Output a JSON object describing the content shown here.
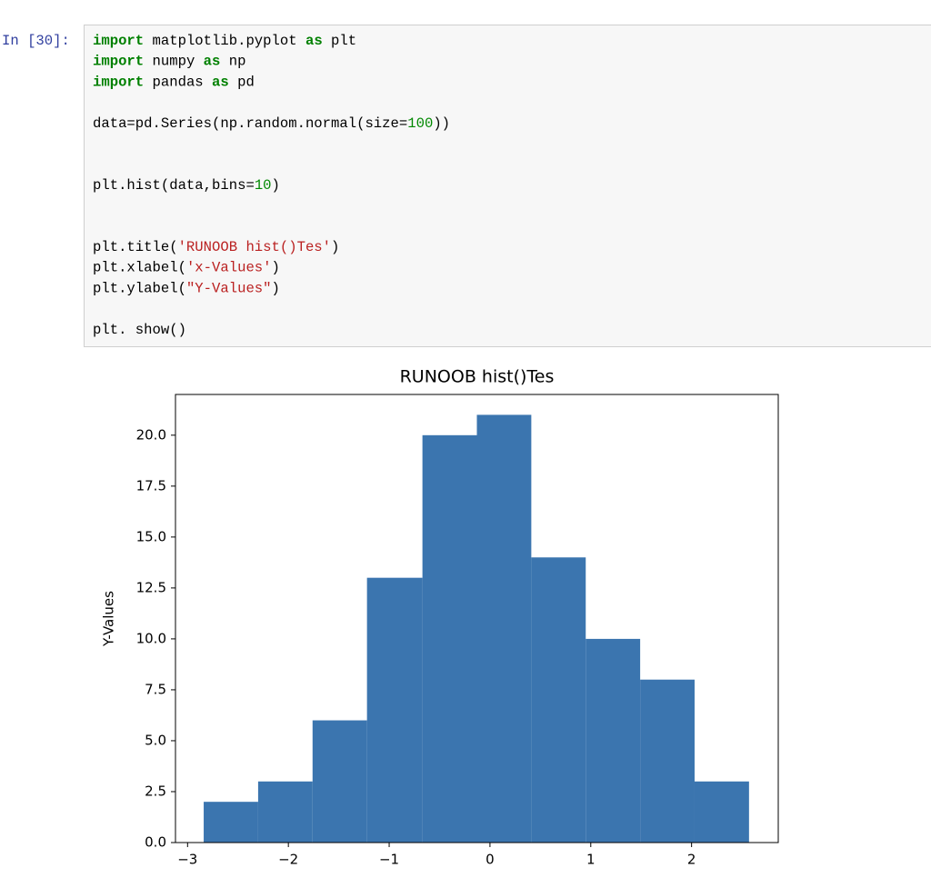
{
  "cell": {
    "prompt": "In [30]:",
    "code": [
      [
        {
          "text": "import",
          "color": "#008000",
          "bold": true
        },
        {
          "text": " matplotlib.pyplot "
        },
        {
          "text": "as",
          "color": "#008000",
          "bold": true
        },
        {
          "text": " plt"
        }
      ],
      [
        {
          "text": "import",
          "color": "#008000",
          "bold": true
        },
        {
          "text": " numpy "
        },
        {
          "text": "as",
          "color": "#008000",
          "bold": true
        },
        {
          "text": " np"
        }
      ],
      [
        {
          "text": "import",
          "color": "#008000",
          "bold": true
        },
        {
          "text": " pandas "
        },
        {
          "text": "as",
          "color": "#008000",
          "bold": true
        },
        {
          "text": " pd"
        }
      ],
      [],
      [
        {
          "text": "data=pd.Series(np.random.normal(size="
        },
        {
          "text": "100",
          "color": "#008800"
        },
        {
          "text": "))"
        }
      ],
      [],
      [],
      [
        {
          "text": "plt.hist(data,bins="
        },
        {
          "text": "10",
          "color": "#008800"
        },
        {
          "text": ")"
        }
      ],
      [],
      [],
      [
        {
          "text": "plt.title("
        },
        {
          "text": "'RUNOOB hist()Tes'",
          "color": "#ba2121"
        },
        {
          "text": ")"
        }
      ],
      [
        {
          "text": "plt.xlabel("
        },
        {
          "text": "'x-Values'",
          "color": "#ba2121"
        },
        {
          "text": ")"
        }
      ],
      [
        {
          "text": "plt.ylabel("
        },
        {
          "text": "\"Y-Values\"",
          "color": "#ba2121"
        },
        {
          "text": ")"
        }
      ],
      [],
      [
        {
          "text": "plt. show()"
        }
      ]
    ]
  },
  "chart_data": {
    "type": "histogram",
    "title": "RUNOOB hist()Tes",
    "ylabel": "Y-Values",
    "bins": [
      -2.84,
      -2.3,
      -1.76,
      -1.22,
      -0.67,
      -0.13,
      0.41,
      0.95,
      1.49,
      2.03,
      2.57
    ],
    "values": [
      2,
      3,
      6,
      13,
      20,
      21,
      14,
      10,
      8,
      3
    ],
    "color": "#3b75af",
    "xlim": [
      -3.12,
      2.86
    ],
    "ylim": [
      0,
      22.0
    ],
    "xticks": [
      {
        "value": -3,
        "label": "−3"
      },
      {
        "value": -2,
        "label": "−2"
      },
      {
        "value": -1,
        "label": "−1"
      },
      0,
      1,
      2
    ],
    "yticks": [
      {
        "value": 0,
        "label": "0.0"
      },
      2.5,
      {
        "value": 5,
        "label": "5.0"
      },
      7.5,
      {
        "value": 10,
        "label": "10.0"
      },
      12.5,
      {
        "value": 15,
        "label": "15.0"
      },
      17.5,
      {
        "value": 20,
        "label": "20.0"
      }
    ]
  }
}
